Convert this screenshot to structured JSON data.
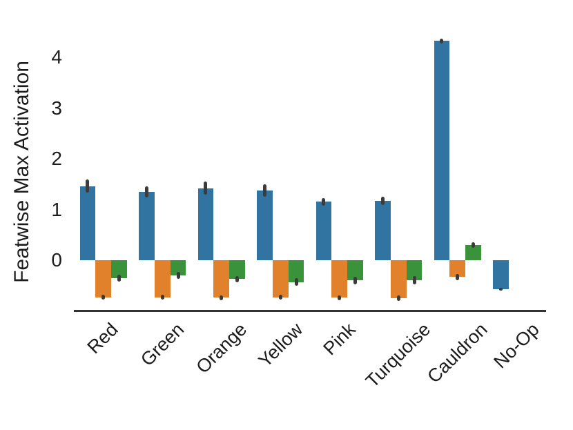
{
  "chart_data": {
    "type": "bar",
    "ylabel": "Featwise Max Activation",
    "xlabel": "",
    "categories": [
      "Red",
      "Green",
      "Orange",
      "Yellow",
      "Pink",
      "Turquoise",
      "Cauldron",
      "No-Op"
    ],
    "series": [
      {
        "name": "blue",
        "color": "#3274a1",
        "values": [
          1.46,
          1.35,
          1.42,
          1.37,
          1.15,
          1.17,
          4.32,
          -0.57
        ],
        "errors": [
          0.13,
          0.11,
          0.13,
          0.12,
          0.08,
          0.08,
          0.05,
          0.03
        ]
      },
      {
        "name": "orange",
        "color": "#e1812c",
        "values": [
          -0.73,
          -0.73,
          -0.74,
          -0.73,
          -0.74,
          -0.75,
          -0.33,
          null
        ],
        "errors": [
          0.05,
          0.05,
          0.05,
          0.05,
          0.05,
          0.05,
          0.06,
          null
        ]
      },
      {
        "name": "green",
        "color": "#3a923a",
        "values": [
          -0.35,
          -0.3,
          -0.37,
          -0.43,
          -0.4,
          -0.39,
          0.3,
          null
        ],
        "errors": [
          0.07,
          0.07,
          0.06,
          0.07,
          0.07,
          0.08,
          0.06,
          null
        ]
      }
    ],
    "yticks": [
      0,
      1,
      2,
      3,
      4
    ],
    "ylim": [
      -1.0,
      4.5
    ],
    "grid": false,
    "legend": false,
    "error_bar_color": "#3b3b3b",
    "axis_color": "#333333",
    "text_color": "#1c1c1c",
    "background": "#ffffff"
  }
}
